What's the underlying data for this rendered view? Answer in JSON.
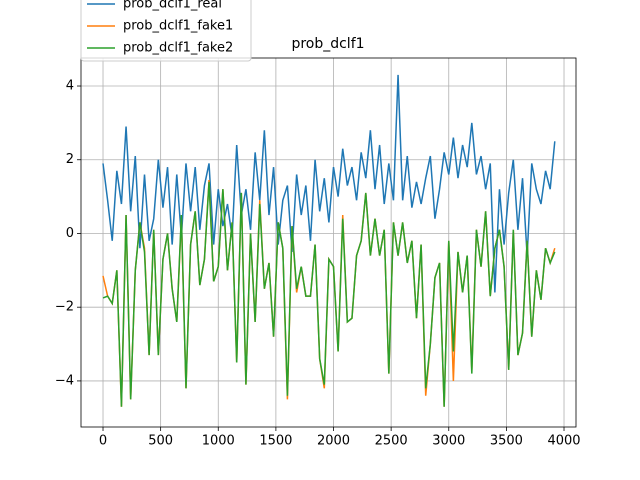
{
  "chart_data": {
    "type": "line",
    "title": "prob_dclf1",
    "x": [
      0,
      40,
      80,
      120,
      160,
      200,
      240,
      280,
      320,
      360,
      400,
      440,
      480,
      520,
      560,
      600,
      640,
      680,
      720,
      760,
      800,
      840,
      880,
      920,
      960,
      1000,
      1040,
      1080,
      1120,
      1160,
      1200,
      1240,
      1280,
      1320,
      1360,
      1400,
      1440,
      1480,
      1520,
      1560,
      1600,
      1640,
      1680,
      1720,
      1760,
      1800,
      1840,
      1880,
      1920,
      1960,
      2000,
      2040,
      2080,
      2120,
      2160,
      2200,
      2240,
      2280,
      2320,
      2360,
      2400,
      2440,
      2480,
      2520,
      2560,
      2600,
      2640,
      2680,
      2720,
      2760,
      2800,
      2840,
      2880,
      2920,
      2960,
      3000,
      3040,
      3080,
      3120,
      3160,
      3200,
      3240,
      3280,
      3320,
      3360,
      3400,
      3440,
      3480,
      3520,
      3560,
      3600,
      3640,
      3680,
      3720,
      3760,
      3800,
      3840,
      3880,
      3920
    ],
    "series": [
      {
        "name": "prob_dclf1_real",
        "color": "#1f77b4",
        "values": [
          1.9,
          0.9,
          -0.2,
          1.7,
          0.8,
          2.9,
          0.6,
          2.1,
          -0.4,
          1.6,
          -0.2,
          0.4,
          2.0,
          0.7,
          1.8,
          -0.3,
          1.6,
          -0.1,
          1.9,
          0.6,
          1.8,
          0.1,
          1.3,
          1.9,
          -0.3,
          1.2,
          0.2,
          0.8,
          -0.1,
          2.4,
          0.5,
          1.2,
          0.1,
          2.2,
          0.9,
          2.8,
          0.5,
          1.8,
          -0.3,
          0.9,
          1.3,
          -0.5,
          1.6,
          0.5,
          1.3,
          -0.2,
          2.0,
          0.6,
          1.5,
          0.3,
          1.8,
          1.0,
          2.3,
          1.3,
          1.8,
          0.9,
          2.2,
          1.5,
          2.8,
          1.2,
          2.4,
          0.8,
          1.9,
          0.9,
          4.3,
          0.9,
          2.1,
          0.7,
          1.4,
          0.8,
          1.5,
          2.1,
          0.4,
          1.2,
          2.2,
          1.6,
          2.6,
          1.5,
          2.4,
          1.8,
          3.0,
          1.6,
          2.1,
          1.2,
          1.9,
          -1.6,
          1.2,
          -0.3,
          1.1,
          2.0,
          0.1,
          1.5,
          -0.6,
          1.9,
          1.2,
          0.8,
          1.7,
          1.2,
          2.5
        ]
      },
      {
        "name": "prob_dclf1_fake1",
        "color": "#ff7f0e",
        "values": [
          -1.15,
          -1.7,
          -1.9,
          -1.0,
          -4.7,
          0.5,
          -4.5,
          -1.0,
          0.3,
          -0.4,
          -3.3,
          0.1,
          -3.3,
          -0.7,
          0.0,
          -1.5,
          -2.4,
          0.4,
          -4.2,
          -0.3,
          0.6,
          -1.4,
          -0.7,
          1.45,
          -1.3,
          -0.9,
          1.2,
          -1.0,
          0.3,
          -3.5,
          1.1,
          -4.1,
          0.0,
          -2.4,
          0.9,
          -1.5,
          -0.8,
          -2.8,
          0.3,
          -0.4,
          -4.5,
          0.2,
          -1.6,
          -0.9,
          -1.7,
          -1.7,
          -0.3,
          -3.4,
          -4.2,
          -0.7,
          -0.9,
          -3.2,
          0.5,
          -2.4,
          -2.3,
          -0.6,
          -0.2,
          1.1,
          -0.6,
          0.4,
          -0.6,
          0.1,
          -3.8,
          0.3,
          -0.6,
          0.3,
          -0.8,
          -0.2,
          -2.3,
          -0.3,
          -4.4,
          -3.0,
          -1.2,
          -0.8,
          -4.7,
          -0.2,
          -4.0,
          -0.5,
          -1.6,
          -0.6,
          -3.7,
          0.1,
          -0.9,
          0.6,
          -1.7,
          -0.4,
          0.1,
          -0.9,
          -3.7,
          0.1,
          -3.3,
          -2.7,
          -0.2,
          -2.8,
          -1.0,
          -1.8,
          -0.4,
          -0.8,
          -0.4
        ]
      },
      {
        "name": "prob_dclf1_fake2",
        "color": "#2ca02c",
        "values": [
          -1.75,
          -1.7,
          -1.9,
          -1.0,
          -4.7,
          0.5,
          -4.5,
          -1.0,
          0.3,
          -0.5,
          -3.3,
          0.1,
          -3.3,
          -0.7,
          0.0,
          -1.5,
          -2.4,
          0.5,
          -4.2,
          -0.3,
          0.6,
          -1.4,
          -0.7,
          1.4,
          -1.3,
          -0.9,
          1.2,
          -1.0,
          0.3,
          -3.5,
          1.1,
          -4.1,
          0.0,
          -2.4,
          0.8,
          -1.5,
          -0.8,
          -2.8,
          0.3,
          -0.4,
          -4.4,
          0.2,
          -1.5,
          -0.9,
          -1.7,
          -1.7,
          -0.3,
          -3.4,
          -4.1,
          -0.7,
          -0.9,
          -3.2,
          0.4,
          -2.4,
          -2.3,
          -0.6,
          -0.2,
          1.1,
          -0.6,
          0.4,
          -0.6,
          0.1,
          -3.8,
          0.3,
          -0.6,
          0.3,
          -0.8,
          -0.2,
          -2.3,
          -0.3,
          -4.2,
          -3.0,
          -1.2,
          -0.8,
          -4.7,
          -0.2,
          -3.2,
          -0.5,
          -1.6,
          -0.6,
          -3.8,
          0.1,
          -0.9,
          0.6,
          -1.7,
          -0.4,
          0.1,
          -0.9,
          -3.7,
          0.1,
          -3.3,
          -2.7,
          -0.2,
          -2.8,
          -1.0,
          -1.8,
          -0.4,
          -0.8,
          -0.5
        ]
      }
    ],
    "xlim": [
      -191,
      4104
    ],
    "xticks": [
      0,
      500,
      1000,
      1500,
      2000,
      2500,
      3000,
      3500,
      4000
    ],
    "ylim": [
      -5.25,
      4.76
    ],
    "yticks": [
      {
        "value": -4,
        "label": "−4"
      },
      {
        "value": -2,
        "label": "−2"
      },
      0,
      2,
      4
    ],
    "grid": true,
    "legend": "upper left"
  }
}
